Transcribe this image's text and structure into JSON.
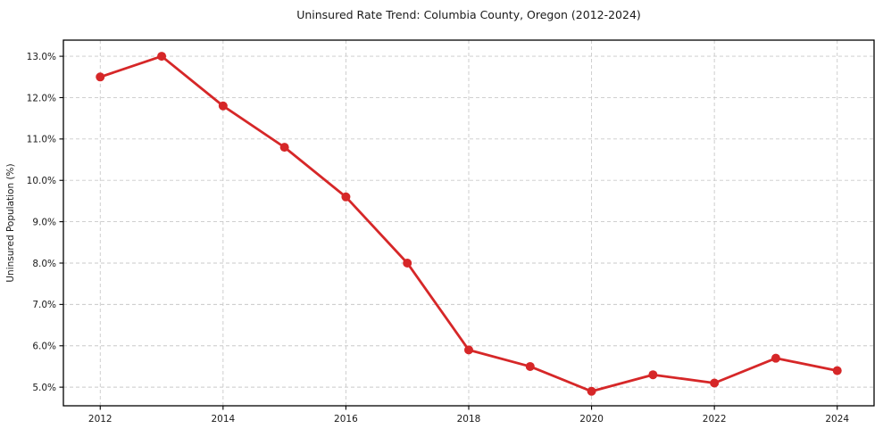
{
  "chart_data": {
    "type": "line",
    "title": "Uninsured Rate Trend: Columbia County, Oregon (2012-2024)",
    "xlabel": "",
    "ylabel": "Uninsured Population (%)",
    "x": [
      2012,
      2013,
      2014,
      2015,
      2016,
      2017,
      2018,
      2019,
      2020,
      2021,
      2022,
      2023,
      2024
    ],
    "series": [
      {
        "name": "Uninsured Population (%)",
        "values": [
          12.5,
          13.0,
          11.8,
          10.8,
          9.6,
          8.0,
          5.9,
          5.5,
          4.9,
          5.3,
          5.1,
          5.7,
          5.4
        ]
      }
    ],
    "xlim": [
      2011.4,
      2024.6
    ],
    "ylim": [
      4.55,
      13.39
    ],
    "yticks": {
      "values": [
        5,
        6,
        7,
        8,
        9,
        10,
        11,
        12,
        13
      ],
      "labels": [
        "5.0%",
        "6.0%",
        "7.0%",
        "8.0%",
        "9.0%",
        "10.0%",
        "11.0%",
        "12.0%",
        "13.0%"
      ]
    },
    "xticks": {
      "values": [
        2012,
        2014,
        2016,
        2018,
        2020,
        2022,
        2024
      ],
      "labels": [
        "2012",
        "2014",
        "2016",
        "2018",
        "2020",
        "2022",
        "2024"
      ]
    },
    "grid": true,
    "grid_style": "dashed",
    "legend": false,
    "colors": {
      "line": "#d62728",
      "marker": "#d62728",
      "grid": "#c9c9c9",
      "frame": "#000000",
      "text": "#1a1a1a",
      "background": "#ffffff"
    },
    "marker": "circle",
    "marker_radius": 5,
    "line_width": 2.8
  }
}
